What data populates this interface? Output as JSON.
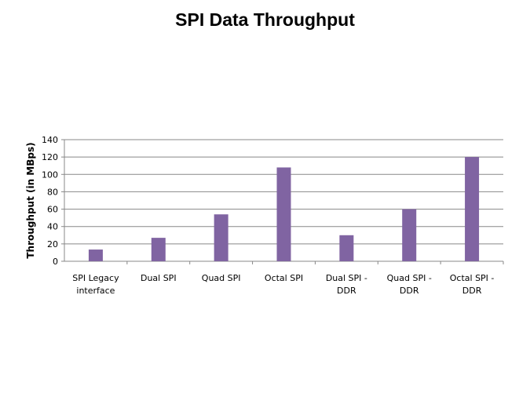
{
  "chart_data": {
    "type": "bar",
    "title": "SPI Data Throughput",
    "xlabel": "",
    "ylabel": "Throughput (in MBps)",
    "categories": [
      [
        "SPI Legacy",
        "interface"
      ],
      [
        "Dual SPI"
      ],
      [
        "Quad SPI"
      ],
      [
        "Octal SPI"
      ],
      [
        "Dual SPI -",
        "DDR"
      ],
      [
        "Quad SPI -",
        "DDR"
      ],
      [
        "Octal SPI -",
        "DDR"
      ]
    ],
    "values": [
      13.5,
      27,
      54,
      108,
      30,
      60,
      120
    ],
    "ylim": [
      0,
      140
    ],
    "yticks": [
      0,
      20,
      40,
      60,
      80,
      100,
      120,
      140
    ],
    "grid": true,
    "legend": "none",
    "bar_color": "#8064a2"
  }
}
